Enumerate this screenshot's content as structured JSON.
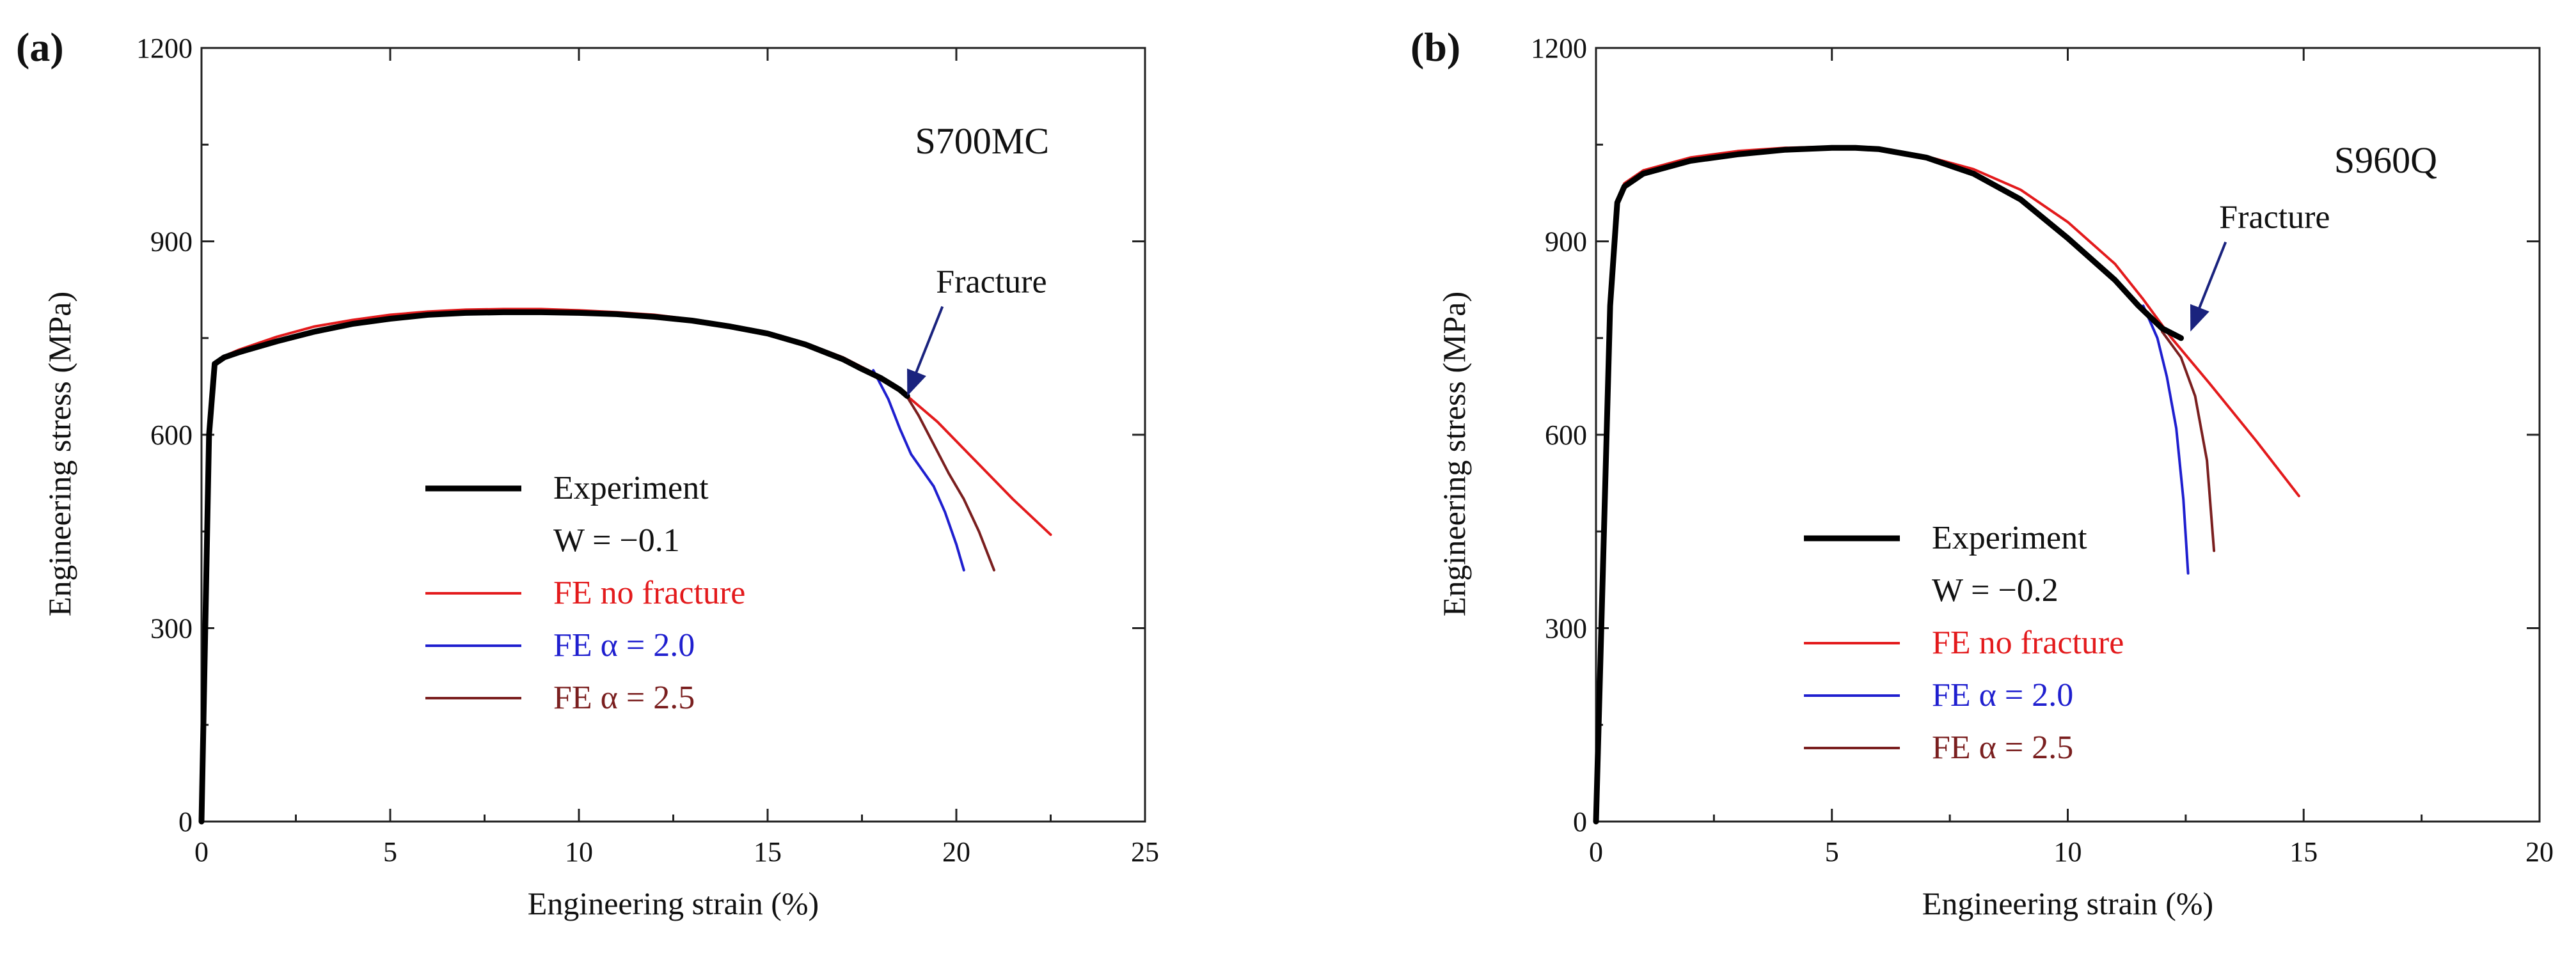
{
  "chart_data": [
    {
      "type": "line",
      "panel_label": "(a)",
      "material": "S700MC",
      "xlabel": "Engineering strain (%)",
      "ylabel": "Engineering stress (MPa)",
      "xlim": [
        0,
        25
      ],
      "ylim": [
        0,
        1200
      ],
      "xticks": [
        0,
        5,
        10,
        15,
        20,
        25
      ],
      "yticks": [
        0,
        300,
        600,
        900,
        1200
      ],
      "annotation": {
        "text": "Fracture",
        "at": [
          18.7,
          660
        ]
      },
      "legend": {
        "position": "center-left",
        "experiment_label": "Experiment",
        "parameter_label": "W = −0.1",
        "nofracture_label": "FE   no fracture",
        "alpha1_label": "FE   α = 2.0",
        "alpha2_label": "FE   α = 2.5"
      },
      "series": [
        {
          "name": "Experiment",
          "color": "#000000",
          "x": [
            0,
            0.2,
            0.35,
            0.6,
            1,
            2,
            3,
            4,
            5,
            6,
            7,
            8,
            9,
            10,
            11,
            12,
            13,
            14,
            15,
            16,
            17,
            17.5,
            18,
            18.5,
            18.7
          ],
          "y": [
            0,
            600,
            710,
            720,
            728,
            745,
            760,
            772,
            780,
            786,
            789,
            790,
            790,
            789,
            787,
            783,
            777,
            768,
            757,
            740,
            717,
            702,
            688,
            670,
            660
          ]
        },
        {
          "name": "FE no fracture",
          "color": "#e31a1c",
          "x": [
            0,
            0.2,
            0.35,
            0.6,
            1,
            2,
            3,
            4,
            5,
            6,
            7,
            8,
            9,
            10,
            11,
            12,
            13,
            14,
            15,
            16,
            17,
            18,
            18.7,
            19.5,
            20.5,
            21.5,
            22.5
          ],
          "y": [
            0,
            600,
            712,
            722,
            732,
            752,
            768,
            778,
            786,
            791,
            794,
            795,
            795,
            793,
            790,
            786,
            779,
            770,
            758,
            742,
            720,
            690,
            660,
            620,
            560,
            500,
            445
          ]
        },
        {
          "name": "FE α = 2.0",
          "color": "#1f1fcf",
          "x": [
            17.8,
            18.2,
            18.5,
            18.8,
            19.1,
            19.4,
            19.7,
            20.0,
            20.2
          ],
          "y": [
            700,
            655,
            610,
            570,
            545,
            520,
            480,
            430,
            390
          ]
        },
        {
          "name": "FE α = 2.5",
          "color": "#7a1f1f",
          "x": [
            18.6,
            19.0,
            19.4,
            19.8,
            20.2,
            20.6,
            21.0
          ],
          "y": [
            668,
            630,
            585,
            540,
            500,
            450,
            390
          ]
        }
      ]
    },
    {
      "type": "line",
      "panel_label": "(b)",
      "material": "S960Q",
      "xlabel": "Engineering strain (%)",
      "ylabel": "Engineering stress (MPa)",
      "xlim": [
        0,
        20
      ],
      "ylim": [
        0,
        1200
      ],
      "xticks": [
        0,
        5,
        10,
        15,
        20
      ],
      "yticks": [
        0,
        300,
        600,
        900,
        1200
      ],
      "annotation": {
        "text": "Fracture",
        "at": [
          12.6,
          760
        ]
      },
      "legend": {
        "position": "bottom-center",
        "experiment_label": "Experiment",
        "parameter_label": "W = −0.2",
        "nofracture_label": "FE   no fracture",
        "alpha1_label": "FE   α = 2.0",
        "alpha2_label": "FE   α = 2.5"
      },
      "series": [
        {
          "name": "Experiment",
          "color": "#000000",
          "x": [
            0,
            0.3,
            0.45,
            0.6,
            1,
            2,
            3,
            4,
            5,
            5.5,
            6,
            7,
            8,
            9,
            10,
            11,
            11.5,
            12,
            12.4
          ],
          "y": [
            0,
            800,
            960,
            985,
            1005,
            1025,
            1035,
            1042,
            1045,
            1045,
            1043,
            1030,
            1005,
            965,
            905,
            840,
            800,
            765,
            750
          ]
        },
        {
          "name": "FE no fracture",
          "color": "#e31a1c",
          "x": [
            0,
            0.3,
            0.45,
            0.6,
            1,
            2,
            3,
            4,
            5,
            6,
            7,
            8,
            9,
            10,
            11,
            11.6,
            12.2,
            13,
            14,
            14.9
          ],
          "y": [
            0,
            800,
            965,
            990,
            1010,
            1030,
            1040,
            1045,
            1047,
            1043,
            1032,
            1012,
            980,
            930,
            865,
            810,
            750,
            680,
            590,
            505
          ]
        },
        {
          "name": "FE α = 2.0",
          "color": "#1f1fcf",
          "x": [
            11.6,
            11.9,
            12.1,
            12.3,
            12.45,
            12.55
          ],
          "y": [
            800,
            750,
            690,
            610,
            500,
            385
          ]
        },
        {
          "name": "FE α = 2.5",
          "color": "#7a1f1f",
          "x": [
            12.0,
            12.4,
            12.7,
            12.95,
            13.1
          ],
          "y": [
            760,
            720,
            660,
            560,
            420
          ]
        }
      ]
    }
  ]
}
